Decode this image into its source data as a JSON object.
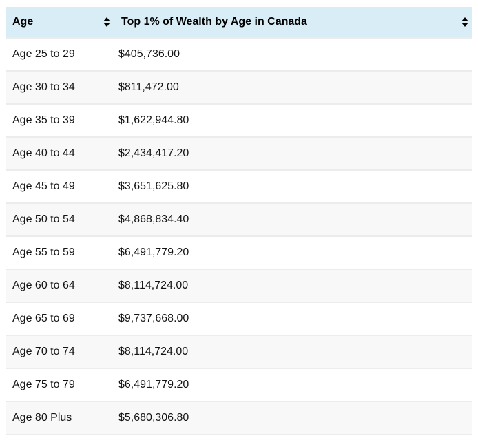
{
  "table": {
    "columns": [
      {
        "label": "Age",
        "sortable": true
      },
      {
        "label": "Top 1% of Wealth by Age in Canada",
        "sortable": true
      }
    ],
    "rows": [
      {
        "age": "Age 25 to 29",
        "wealth": "$405,736.00"
      },
      {
        "age": "Age 30 to 34",
        "wealth": "$811,472.00"
      },
      {
        "age": "Age 35 to 39",
        "wealth": "$1,622,944.80"
      },
      {
        "age": "Age 40 to 44",
        "wealth": "$2,434,417.20"
      },
      {
        "age": "Age 45 to 49",
        "wealth": "$3,651,625.80"
      },
      {
        "age": "Age 50 to 54",
        "wealth": "$4,868,834.40"
      },
      {
        "age": "Age 55 to 59",
        "wealth": "$6,491,779.20"
      },
      {
        "age": "Age 60 to 64",
        "wealth": "$8,114,724.00"
      },
      {
        "age": "Age 65 to 69",
        "wealth": "$9,737,668.00"
      },
      {
        "age": "Age 70 to 74",
        "wealth": "$8,114,724.00"
      },
      {
        "age": "Age 75 to 79",
        "wealth": "$6,491,779.20"
      },
      {
        "age": "Age 80 Plus",
        "wealth": "$5,680,306.80"
      }
    ],
    "icons": {
      "sort": "sort-both-icon"
    }
  },
  "colors": {
    "header_bg": "#d9edf7",
    "row_alt_bg": "#f8f8f8",
    "row_bg": "#ffffff",
    "border": "#ececec",
    "text": "#111111",
    "sort_icon": "#000000"
  },
  "chart_data": {
    "type": "table",
    "title": "Top 1% of Wealth by Age in Canada",
    "columns": [
      "Age",
      "Top 1% of Wealth by Age in Canada"
    ],
    "categories": [
      "Age 25 to 29",
      "Age 30 to 34",
      "Age 35 to 39",
      "Age 40 to 44",
      "Age 45 to 49",
      "Age 50 to 54",
      "Age 55 to 59",
      "Age 60 to 64",
      "Age 65 to 69",
      "Age 70 to 74",
      "Age 75 to 79",
      "Age 80 Plus"
    ],
    "values": [
      405736.0,
      811472.0,
      1622944.8,
      2434417.2,
      3651625.8,
      4868834.4,
      6491779.2,
      8114724.0,
      9737668.0,
      8114724.0,
      6491779.2,
      5680306.8
    ],
    "value_format": "currency_CAD",
    "sortable_columns": true
  }
}
